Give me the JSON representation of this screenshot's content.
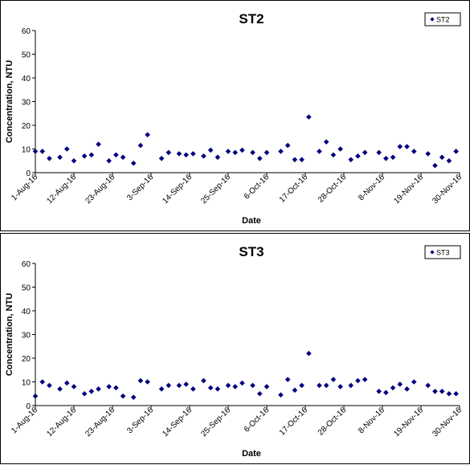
{
  "chart_data": [
    {
      "type": "scatter",
      "title": "ST2",
      "xlabel": "Date",
      "ylabel": "Concentration, NTU",
      "ylim": [
        0,
        60
      ],
      "yticks": [
        "0",
        "10",
        "20",
        "30",
        "40",
        "50",
        "60"
      ],
      "xlim": [
        "2016-08-01",
        "2016-11-30"
      ],
      "xticks": [
        "1-Aug-16",
        "12-Aug-16",
        "23-Aug-16",
        "3-Sep-16",
        "14-Sep-16",
        "25-Sep-16",
        "6-Oct-16",
        "17-Oct-16",
        "28-Oct-16",
        "8-Nov-16",
        "19-Nov-16",
        "30-Nov-16"
      ],
      "legend": "top-right",
      "marker_color": "#000080",
      "series": [
        {
          "name": "ST2",
          "x": [
            "2016-08-01",
            "2016-08-03",
            "2016-08-05",
            "2016-08-08",
            "2016-08-10",
            "2016-08-12",
            "2016-08-15",
            "2016-08-17",
            "2016-08-19",
            "2016-08-22",
            "2016-08-24",
            "2016-08-26",
            "2016-08-29",
            "2016-08-31",
            "2016-09-02",
            "2016-09-06",
            "2016-09-08",
            "2016-09-11",
            "2016-09-13",
            "2016-09-15",
            "2016-09-18",
            "2016-09-20",
            "2016-09-22",
            "2016-09-25",
            "2016-09-27",
            "2016-09-29",
            "2016-10-02",
            "2016-10-04",
            "2016-10-06",
            "2016-10-10",
            "2016-10-12",
            "2016-10-14",
            "2016-10-16",
            "2016-10-18",
            "2016-10-21",
            "2016-10-23",
            "2016-10-25",
            "2016-10-27",
            "2016-10-30",
            "2016-11-01",
            "2016-11-03",
            "2016-11-07",
            "2016-11-09",
            "2016-11-11",
            "2016-11-13",
            "2016-11-15",
            "2016-11-17",
            "2016-11-21",
            "2016-11-23",
            "2016-11-25",
            "2016-11-27",
            "2016-11-29"
          ],
          "y": [
            9,
            9,
            6,
            6.5,
            10,
            5,
            7,
            7.5,
            12,
            5,
            7.5,
            6.5,
            4,
            11.5,
            16,
            6,
            8.5,
            8,
            7.5,
            8,
            7,
            9.5,
            6.5,
            9,
            8.5,
            9.5,
            8.5,
            6,
            8.5,
            9,
            11.5,
            5.5,
            5.5,
            23.5,
            9,
            13,
            7.5,
            10,
            5.5,
            7,
            8.5,
            8.5,
            6,
            6.5,
            11,
            11,
            9,
            8,
            3,
            6.5,
            5,
            9
          ]
        }
      ]
    },
    {
      "type": "scatter",
      "title": "ST3",
      "xlabel": "Date",
      "ylabel": "Concentration, NTU",
      "ylim": [
        0,
        60
      ],
      "yticks": [
        "0",
        "10",
        "20",
        "30",
        "40",
        "50",
        "60"
      ],
      "xlim": [
        "2016-08-01",
        "2016-11-30"
      ],
      "xticks": [
        "1-Aug-16",
        "12-Aug-16",
        "23-Aug-16",
        "3-Sep-16",
        "14-Sep-16",
        "25-Sep-16",
        "6-Oct-16",
        "17-Oct-16",
        "28-Oct-16",
        "8-Nov-16",
        "19-Nov-16",
        "30-Nov-16"
      ],
      "legend": "top-right",
      "marker_color": "#000080",
      "series": [
        {
          "name": "ST3",
          "x": [
            "2016-08-01",
            "2016-08-03",
            "2016-08-05",
            "2016-08-08",
            "2016-08-10",
            "2016-08-12",
            "2016-08-15",
            "2016-08-17",
            "2016-08-19",
            "2016-08-22",
            "2016-08-24",
            "2016-08-26",
            "2016-08-29",
            "2016-08-31",
            "2016-09-02",
            "2016-09-06",
            "2016-09-08",
            "2016-09-11",
            "2016-09-13",
            "2016-09-15",
            "2016-09-18",
            "2016-09-20",
            "2016-09-22",
            "2016-09-25",
            "2016-09-27",
            "2016-09-29",
            "2016-10-02",
            "2016-10-04",
            "2016-10-06",
            "2016-10-10",
            "2016-10-12",
            "2016-10-14",
            "2016-10-16",
            "2016-10-18",
            "2016-10-21",
            "2016-10-23",
            "2016-10-25",
            "2016-10-27",
            "2016-10-30",
            "2016-11-01",
            "2016-11-03",
            "2016-11-07",
            "2016-11-09",
            "2016-11-11",
            "2016-11-13",
            "2016-11-15",
            "2016-11-17",
            "2016-11-21",
            "2016-11-23",
            "2016-11-25",
            "2016-11-27",
            "2016-11-29"
          ],
          "y": [
            4,
            10,
            8.5,
            7,
            9.5,
            8,
            5,
            6,
            7,
            8,
            7.5,
            4,
            3.5,
            10.5,
            10,
            7,
            8.5,
            8.5,
            9,
            7,
            10.5,
            7.5,
            7,
            8.5,
            8,
            9.5,
            8.5,
            5,
            8,
            4.5,
            11,
            6.5,
            8.5,
            22,
            8.5,
            8.5,
            11,
            8,
            8.5,
            10.5,
            11,
            6,
            5.5,
            7.5,
            9,
            7,
            10,
            8.5,
            6,
            6,
            5,
            5
          ]
        }
      ]
    }
  ]
}
